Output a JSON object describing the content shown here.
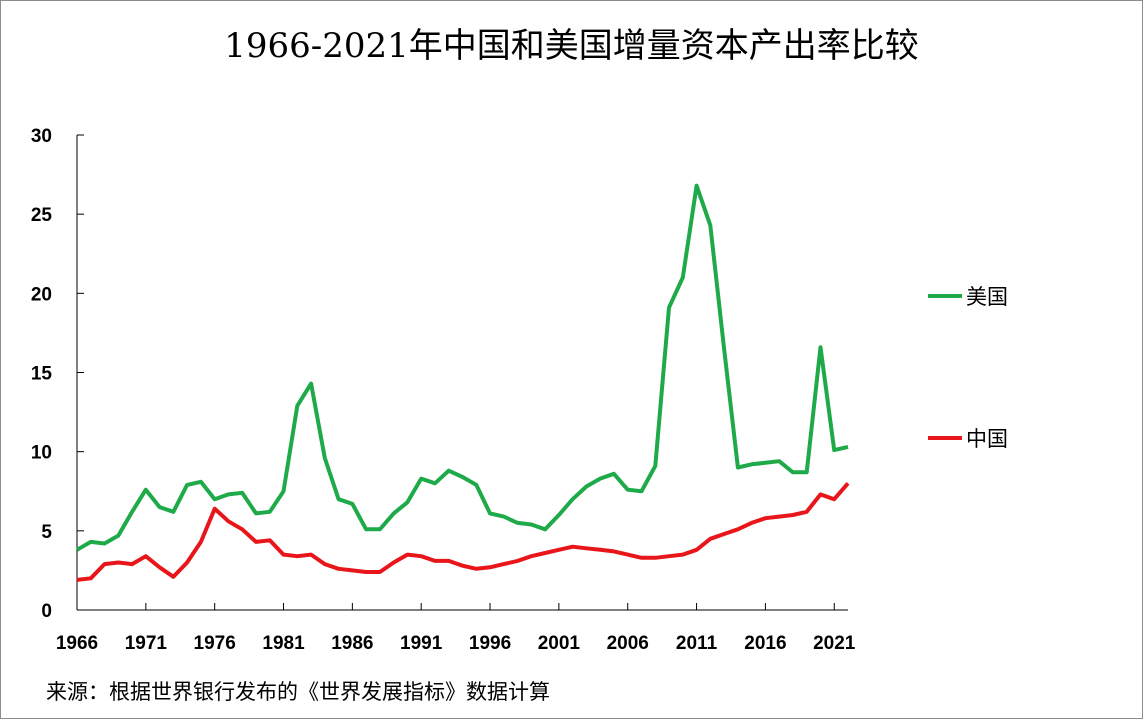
{
  "title": "1966-2021年中国和美国增量资本产出率比较",
  "source": "来源：根据世界银行发布的《世界发展指标》数据计算",
  "chart_data": {
    "type": "line",
    "title": "1966-2021年中国和美国增量资本产出率比较",
    "xlabel": "",
    "ylabel": "",
    "x": [
      1966,
      1967,
      1968,
      1969,
      1970,
      1971,
      1972,
      1973,
      1974,
      1975,
      1976,
      1977,
      1978,
      1979,
      1980,
      1981,
      1982,
      1983,
      1984,
      1985,
      1986,
      1987,
      1988,
      1989,
      1990,
      1991,
      1992,
      1993,
      1994,
      1995,
      1996,
      1997,
      1998,
      1999,
      2000,
      2001,
      2002,
      2003,
      2004,
      2005,
      2006,
      2007,
      2008,
      2009,
      2010,
      2011,
      2012,
      2013,
      2014,
      2015,
      2016,
      2017,
      2018,
      2019,
      2020,
      2021,
      2022
    ],
    "x_tick_labels": [
      "1966",
      "1971",
      "1976",
      "1981",
      "1986",
      "1991",
      "1996",
      "2001",
      "2006",
      "2011",
      "2016",
      "2021"
    ],
    "y_ticks": [
      0,
      5,
      10,
      15,
      20,
      25,
      30
    ],
    "ylim": [
      0,
      30
    ],
    "grid": false,
    "legend_position": "right",
    "series": [
      {
        "name": "美国",
        "color": "#1faa4a",
        "values": [
          3.8,
          4.3,
          4.2,
          4.7,
          6.2,
          7.6,
          6.5,
          6.2,
          7.9,
          8.1,
          7.0,
          7.3,
          7.4,
          6.1,
          6.2,
          7.5,
          12.9,
          14.3,
          9.6,
          7.0,
          6.7,
          5.1,
          5.1,
          6.1,
          6.8,
          8.3,
          8.0,
          8.8,
          8.4,
          7.9,
          6.1,
          5.9,
          5.5,
          5.4,
          5.1,
          6.0,
          7.0,
          7.8,
          8.3,
          8.6,
          7.6,
          7.5,
          9.1,
          19.1,
          21.0,
          26.8,
          24.3,
          16.5,
          9.0,
          9.2,
          9.3,
          9.4,
          8.7,
          8.7,
          16.6,
          10.1,
          10.3
        ]
      },
      {
        "name": "中国",
        "color": "#e8161a",
        "values": [
          1.9,
          2.0,
          2.9,
          3.0,
          2.9,
          3.4,
          2.7,
          2.1,
          3.0,
          4.3,
          6.4,
          5.6,
          5.1,
          4.3,
          4.4,
          3.5,
          3.4,
          3.5,
          2.9,
          2.6,
          2.5,
          2.4,
          2.4,
          3.0,
          3.5,
          3.4,
          3.1,
          3.1,
          2.8,
          2.6,
          2.7,
          2.9,
          3.1,
          3.4,
          3.6,
          3.8,
          4.0,
          3.9,
          3.8,
          3.7,
          3.5,
          3.3,
          3.3,
          3.4,
          3.5,
          3.8,
          4.5,
          4.8,
          5.1,
          5.5,
          5.8,
          5.9,
          6.0,
          6.2,
          7.3,
          7.0,
          8.0
        ]
      }
    ]
  }
}
